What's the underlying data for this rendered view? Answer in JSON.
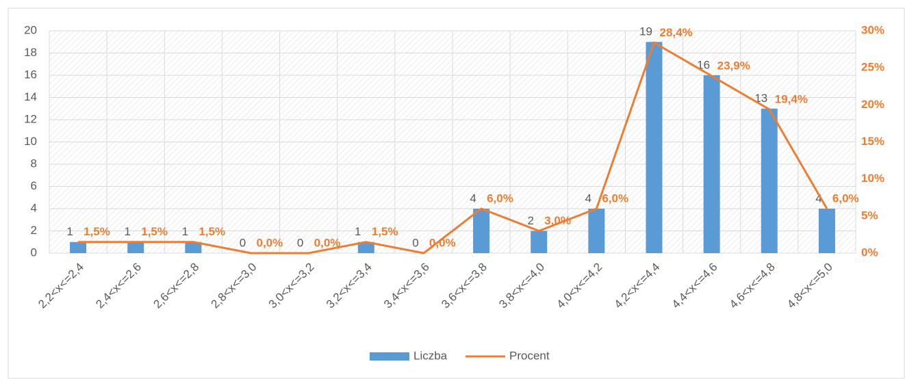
{
  "chart_data": {
    "type": "bar",
    "categories": [
      "2,2<x<=2,4",
      "2,4<x<=2,6",
      "2,6<x<=2,8",
      "2,8<x<=3,0",
      "3,0<x<=3,2",
      "3,2<x<=3,4",
      "3,4<x<=3,6",
      "3,6<x<=3,8",
      "3,8<x<=4,0",
      "4,0<x<=4,2",
      "4,2<x<=4,4",
      "4,4<x<=4,6",
      "4,6<x<=4,8",
      "4,8<x<=5,0"
    ],
    "series": [
      {
        "name": "Liczba",
        "type": "bar",
        "color": "#5b9bd5",
        "values": [
          1,
          1,
          1,
          0,
          0,
          1,
          0,
          4,
          2,
          4,
          19,
          16,
          13,
          4
        ]
      },
      {
        "name": "Procent",
        "type": "line",
        "axis": "y2",
        "color": "#ed7d31",
        "values": [
          1.5,
          1.5,
          1.5,
          0,
          0,
          1.5,
          0,
          6,
          3,
          6,
          28.4,
          23.9,
          19.4,
          6
        ],
        "value_labels": [
          "1,5%",
          "1,5%",
          "1,5%",
          "0,0%",
          "0,0%",
          "1,5%",
          "0,0%",
          "6,0%",
          "3,0%",
          "6,0%",
          "28,4%",
          "23,9%",
          "19,4%",
          "6,0%"
        ]
      }
    ],
    "ylim": [
      0,
      20
    ],
    "yticks": [
      0,
      2,
      4,
      6,
      8,
      10,
      12,
      14,
      16,
      18,
      20
    ],
    "y2lim": [
      0,
      30
    ],
    "y2ticks": [
      {
        "value": 0,
        "label": "0%"
      },
      {
        "value": 5,
        "label": "5%"
      },
      {
        "value": 10,
        "label": "10%"
      },
      {
        "value": 15,
        "label": "15%"
      },
      {
        "value": 20,
        "label": "20%"
      },
      {
        "value": 25,
        "label": "25%"
      },
      {
        "value": 30,
        "label": "30%"
      }
    ],
    "grid": true,
    "legend": "bottom"
  }
}
